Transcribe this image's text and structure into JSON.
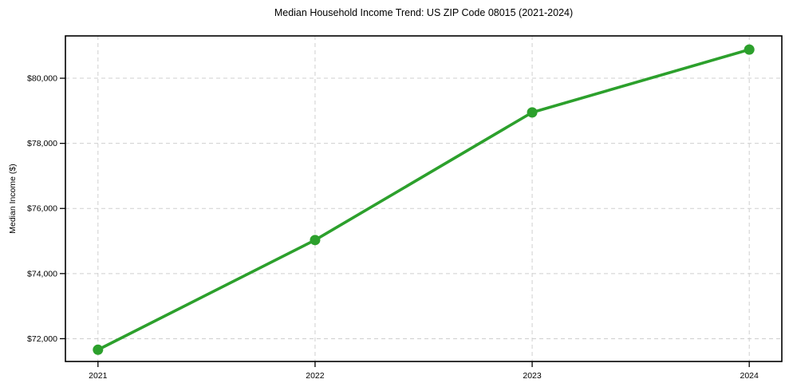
{
  "chart_data": {
    "type": "line",
    "title": "Median Household Income Trend: US ZIP Code 08015 (2021-2024)",
    "xlabel": "",
    "ylabel": "Median Income ($)",
    "x": [
      2021,
      2022,
      2023,
      2024
    ],
    "series": [
      {
        "values": [
          71660,
          75030,
          78950,
          80880
        ],
        "color": "#2ca02c",
        "marker": "circle"
      }
    ],
    "xticks": [
      2021,
      2022,
      2023,
      2024
    ],
    "xtick_labels": [
      "2021",
      "2022",
      "2023",
      "2024"
    ],
    "yticks": [
      72000,
      74000,
      76000,
      78000,
      80000
    ],
    "ytick_labels": [
      "$72,000",
      "$74,000",
      "$76,000",
      "$78,000",
      "$80,000"
    ],
    "xlim": [
      2020.85,
      2024.15
    ],
    "ylim": [
      71300,
      81300
    ],
    "grid": true,
    "grid_color": "#cfcfcf",
    "grid_style": "dashed",
    "legend": "none",
    "line_color": "#2ca02c",
    "axis_color": "#000000",
    "background_color": "#ffffff"
  }
}
